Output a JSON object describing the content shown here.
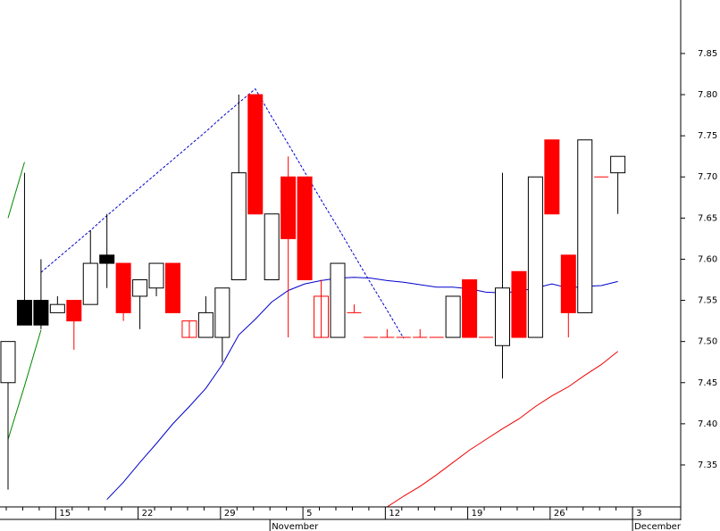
{
  "chart_data": {
    "type": "candlestick",
    "categories": [
      null,
      null,
      null,
      "15",
      null,
      null,
      null,
      null,
      "22",
      null,
      null,
      null,
      null,
      "29",
      null,
      null,
      null,
      null,
      "5",
      null,
      null,
      null,
      null,
      "12",
      null,
      null,
      null,
      null,
      "19",
      null,
      null,
      null,
      null,
      "26",
      null,
      null,
      null,
      null,
      "3"
    ],
    "months": [
      null,
      null,
      null,
      null,
      null,
      null,
      null,
      null,
      null,
      null,
      null,
      null,
      null,
      null,
      null,
      null,
      "November",
      null,
      null,
      null,
      null,
      null,
      null,
      null,
      null,
      null,
      null,
      null,
      null,
      null,
      null,
      null,
      null,
      null,
      null,
      null,
      null,
      null,
      "December"
    ],
    "ylim": [
      7.299,
      7.915
    ],
    "yticks": [
      {
        "value": 7.35,
        "label": "7.35"
      },
      {
        "value": 7.4,
        "label": "7.40"
      },
      {
        "value": 7.45,
        "label": "7.45"
      },
      {
        "value": 7.5,
        "label": "7.50"
      },
      {
        "value": 7.55,
        "label": "7.55"
      },
      {
        "value": 7.6,
        "label": "7.60"
      },
      {
        "value": 7.65,
        "label": "7.65"
      },
      {
        "value": 7.7,
        "label": "7.70"
      },
      {
        "value": 7.75,
        "label": "7.75"
      },
      {
        "value": 7.8,
        "label": "7.80"
      },
      {
        "value": 7.85,
        "label": "7.85"
      }
    ],
    "ohlc": {
      "open": [
        7.45,
        7.55,
        7.55,
        7.535,
        7.55,
        7.545,
        7.605,
        7.595,
        7.555,
        7.565,
        7.595,
        7.525,
        7.505,
        7.505,
        7.575,
        7.8,
        7.575,
        7.7,
        7.7,
        7.555,
        7.505,
        7.535,
        7.505,
        7.505,
        7.505,
        7.505,
        7.505,
        7.505,
        7.575,
        7.505,
        7.495,
        7.585,
        7.505,
        7.745,
        7.605,
        7.535,
        7.7,
        7.705,
        null
      ],
      "high": [
        7.5,
        7.705,
        7.6,
        7.555,
        7.55,
        7.635,
        7.655,
        7.595,
        7.575,
        7.595,
        7.595,
        7.525,
        7.555,
        7.565,
        7.8,
        7.8,
        7.655,
        7.725,
        7.7,
        7.575,
        7.595,
        7.545,
        7.505,
        7.515,
        7.505,
        7.515,
        7.505,
        7.555,
        7.575,
        7.505,
        7.705,
        7.585,
        7.7,
        7.745,
        7.605,
        7.745,
        7.7,
        7.725,
        null
      ],
      "low": [
        7.32,
        7.52,
        7.515,
        7.535,
        7.49,
        7.545,
        7.565,
        7.525,
        7.515,
        7.555,
        7.535,
        7.505,
        7.505,
        7.475,
        7.575,
        7.655,
        7.575,
        7.505,
        7.575,
        7.505,
        7.505,
        7.535,
        7.505,
        7.505,
        7.505,
        7.505,
        7.505,
        7.505,
        7.505,
        7.505,
        7.455,
        7.505,
        7.505,
        7.655,
        7.505,
        7.535,
        7.7,
        7.655,
        null
      ],
      "close": [
        7.5,
        7.52,
        7.52,
        7.545,
        7.525,
        7.595,
        7.595,
        7.535,
        7.575,
        7.595,
        7.535,
        7.505,
        7.535,
        7.565,
        7.705,
        7.655,
        7.655,
        7.625,
        7.575,
        7.505,
        7.595,
        7.535,
        7.505,
        7.505,
        7.505,
        7.505,
        7.505,
        7.555,
        7.505,
        7.505,
        7.565,
        7.505,
        7.7,
        7.655,
        7.535,
        7.745,
        7.7,
        7.725,
        null
      ],
      "fills": [
        "#ffffff",
        "#000000",
        "#000000",
        "#ffffff",
        "#ff0000",
        "#ffffff",
        "#000000",
        "#ff0000",
        "#ffffff",
        "#ffffff",
        "#ff0000",
        "none",
        "#ffffff",
        "#ffffff",
        "#ffffff",
        "#ff0000",
        "#ffffff",
        "#ff0000",
        "#ff0000",
        "none",
        "#ffffff",
        "#ff0000",
        "#ff0000",
        "#ff0000",
        "#ff0000",
        "#ff0000",
        "#ff0000",
        "#ffffff",
        "#ff0000",
        "#ff0000",
        "#ffffff",
        "#ff0000",
        "#ffffff",
        "#ff0000",
        "#ff0000",
        "#ffffff",
        "#ff0000",
        "#ffffff",
        null
      ],
      "strokes": [
        "#000000",
        "#000000",
        "#000000",
        "#000000",
        "#ff0000",
        "#000000",
        "#000000",
        "#ff0000",
        "#000000",
        "#000000",
        "#ff0000",
        "#ff0000",
        "#000000",
        "#000000",
        "#000000",
        "#ff0000",
        "#000000",
        "#ff0000",
        "#ff0000",
        "#ff0000",
        "#000000",
        "#ff0000",
        "#ff0000",
        "#ff0000",
        "#ff0000",
        "#ff0000",
        "#ff0000",
        "#000000",
        "#ff0000",
        "#ff0000",
        "#000000",
        "#ff0000",
        "#000000",
        "#ff0000",
        "#ff0000",
        "#000000",
        "#ff0000",
        "#000000",
        null
      ]
    },
    "series": [
      {
        "color": "#0000cc",
        "dashed": false,
        "values": [
          null,
          null,
          null,
          null,
          null,
          null,
          7.308,
          7.329,
          7.353,
          7.376,
          7.4,
          7.421,
          7.443,
          7.472,
          7.508,
          7.527,
          7.548,
          7.562,
          7.57,
          7.574,
          7.577,
          7.578,
          7.577,
          7.574,
          7.572,
          7.569,
          7.566,
          7.566,
          7.564,
          7.56,
          7.559,
          7.561,
          7.565,
          7.57,
          7.565,
          7.567,
          7.568,
          7.573,
          null
        ]
      },
      {
        "color": "#ee0000",
        "dashed": false,
        "values": [
          null,
          null,
          null,
          null,
          null,
          null,
          null,
          null,
          null,
          null,
          null,
          null,
          null,
          null,
          null,
          null,
          null,
          null,
          null,
          null,
          null,
          null,
          null,
          7.299,
          7.312,
          7.324,
          7.338,
          7.353,
          7.368,
          7.381,
          7.394,
          7.406,
          7.421,
          7.434,
          7.445,
          7.459,
          7.472,
          7.488,
          null
        ]
      },
      {
        "color": "#008800",
        "dashed": false,
        "values": [
          7.65,
          7.718,
          null,
          null,
          null,
          null,
          null,
          null,
          null,
          null,
          null,
          null,
          null,
          null,
          null,
          null,
          null,
          null,
          null,
          null,
          null,
          null,
          null,
          null,
          null,
          null,
          null,
          null,
          null,
          null,
          null,
          null,
          null,
          null,
          null,
          null,
          null,
          null,
          null
        ]
      },
      {
        "color": "#008800",
        "dashed": false,
        "values": [
          7.381,
          7.446,
          7.514,
          null,
          null,
          null,
          null,
          null,
          null,
          null,
          null,
          null,
          null,
          null,
          null,
          null,
          null,
          null,
          null,
          null,
          null,
          null,
          null,
          null,
          null,
          null,
          null,
          null,
          null,
          null,
          null,
          null,
          null,
          null,
          null,
          null,
          null,
          null,
          null
        ]
      },
      {
        "color": "#0000cc",
        "dashed": true,
        "values": [
          null,
          null,
          7.584,
          7.601,
          7.618,
          7.635,
          7.653,
          7.67,
          7.687,
          7.704,
          7.721,
          7.738,
          7.755,
          7.773,
          7.79,
          7.807,
          7.773,
          7.74,
          7.706,
          7.672,
          7.639,
          7.605,
          7.571,
          7.538,
          7.504,
          null,
          null,
          null,
          null,
          null,
          null,
          null,
          null,
          null,
          null,
          null,
          null,
          null,
          null
        ]
      }
    ]
  }
}
